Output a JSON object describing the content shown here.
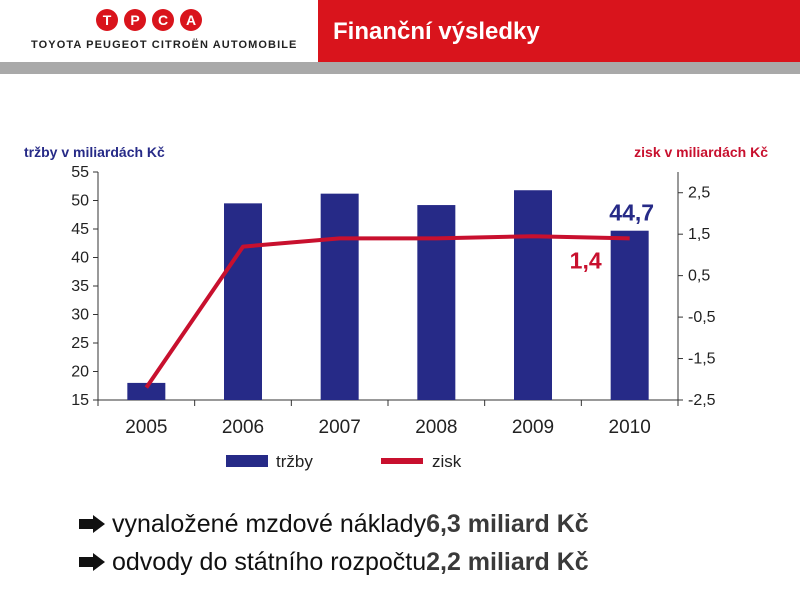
{
  "header": {
    "logo_letters": [
      "T",
      "P",
      "C",
      "A"
    ],
    "logo_subtitle": "TOYOTA PEUGEOT CITROËN AUTOMOBILE",
    "title": "Finanční výsledky"
  },
  "chart_data": {
    "type": "bar",
    "categories": [
      "2005",
      "2006",
      "2007",
      "2008",
      "2009",
      "2010"
    ],
    "series": [
      {
        "name": "tržby",
        "type": "bar",
        "axis": "left",
        "color": "#262a87",
        "values": [
          18,
          49.5,
          51.2,
          49.2,
          51.8,
          44.7
        ]
      },
      {
        "name": "zisk",
        "type": "line",
        "axis": "right",
        "color": "#c8102e",
        "values": [
          -2.2,
          1.2,
          1.4,
          1.4,
          1.45,
          1.4
        ]
      }
    ],
    "ylabel": "tržby v miliardách Kč",
    "y2label": "zisk v miliardách Kč",
    "ylim": [
      15,
      55
    ],
    "y2lim": [
      -2.5,
      3
    ],
    "yticks": [
      "55",
      "50",
      "45",
      "40",
      "35",
      "30",
      "25",
      "20",
      "15"
    ],
    "y2ticks": [
      "2,5",
      "1,5",
      "0,5",
      "-0,5",
      "-1,5",
      "-2,5"
    ],
    "annotations": [
      {
        "text": "44,7",
        "series": "tržby",
        "category": "2010",
        "color": "#262a87"
      },
      {
        "text": "1,4",
        "series": "zisk",
        "category": "2010",
        "color": "#c8102e"
      }
    ],
    "grid": false,
    "legend_position": "bottom"
  },
  "bullets": [
    {
      "text": "vynaložené mzdové náklady ",
      "bold": "6,3 miliard Kč"
    },
    {
      "text": "odvody do státního rozpočtu ",
      "bold": "2,2 miliard Kč"
    }
  ],
  "colors": {
    "brand_red": "#d9141c",
    "bar_blue": "#262a87",
    "line_red": "#c8102e",
    "gray_bar": "#a9a9a9"
  }
}
